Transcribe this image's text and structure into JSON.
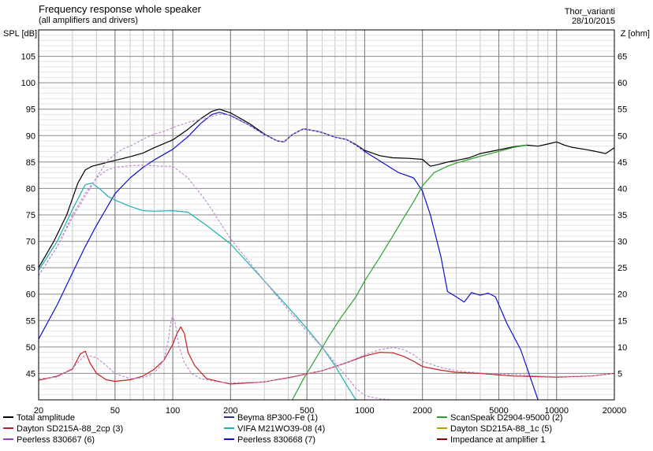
{
  "header": {
    "title": "Frequency response whole speaker",
    "subtitle": "(all amplifiers and drivers)",
    "author": "Thor_varianti",
    "date": "28/10/2015"
  },
  "chart_data": {
    "type": "line",
    "title": "Frequency response whole speaker",
    "subtitle": "(all amplifiers and drivers)",
    "xlabel": "",
    "ylabel": "SPL [dB]",
    "y2label": "Z [ohm]",
    "x_scale": "log",
    "xlim": [
      20,
      20000
    ],
    "ylim": [
      40,
      110
    ],
    "y2lim": [
      0,
      70
    ],
    "grid": true,
    "x_ticks": [
      20,
      50,
      100,
      200,
      500,
      1000,
      2000,
      5000,
      10000,
      20000
    ],
    "x_tick_labels": [
      "20",
      "50",
      "100",
      "200",
      "500",
      "1000",
      "2000",
      "5000",
      "10000",
      "20000"
    ],
    "y_ticks": [
      45,
      50,
      55,
      60,
      65,
      70,
      75,
      80,
      85,
      90,
      95,
      100,
      105
    ],
    "y_tick_labels": [
      "45",
      "50",
      "55",
      "60",
      "65",
      "70",
      "75",
      "80",
      "85",
      "90",
      "95",
      "100",
      "105"
    ],
    "y2_ticks": [
      5,
      10,
      15,
      20,
      25,
      30,
      35,
      40,
      45,
      50,
      55,
      60,
      65
    ],
    "y2_tick_labels": [
      "5",
      "10",
      "15",
      "20",
      "25",
      "30",
      "35",
      "40",
      "45",
      "50",
      "55",
      "60",
      "65"
    ],
    "legend_position": "bottom",
    "legend": [
      {
        "label": "Total amplitude",
        "color": "#000000"
      },
      {
        "label": "Beyma 8P300-Fe (1)",
        "color": "#303090"
      },
      {
        "label": "ScanSpeak D2904-95000 (2)",
        "color": "#30a030"
      },
      {
        "label": "Dayton SD215A-88_2cp (3)",
        "color": "#c02020"
      },
      {
        "label": "VIFA M21WO39-08 (4)",
        "color": "#20b0b0"
      },
      {
        "label": "Dayton SD215A-88_1c (5)",
        "color": "#b0a000"
      },
      {
        "label": "Peerless 830667 (6)",
        "color": "#9040c0"
      },
      {
        "label": "Peerless 830668 (7)",
        "color": "#1010d0"
      },
      {
        "label": "Impedance at amplifier 1",
        "color": "#800000"
      }
    ],
    "series": [
      {
        "name": "Total amplitude",
        "color": "#000000",
        "style": "solid",
        "x": [
          20,
          24,
          28,
          32,
          35,
          38,
          42,
          46,
          50,
          60,
          70,
          80,
          90,
          100,
          120,
          140,
          160,
          175,
          200,
          250,
          300,
          350,
          380,
          420,
          480,
          550,
          600,
          700,
          800,
          900,
          1000,
          1200,
          1400,
          1700,
          2000,
          2200,
          2400,
          2700,
          3000,
          3500,
          4000,
          5000,
          6000,
          7000,
          8000,
          9000,
          10000,
          11000,
          12000,
          14000,
          16000,
          18000,
          20000
        ],
        "y": [
          65,
          70,
          75,
          81,
          83.5,
          84.2,
          84.6,
          85,
          85.3,
          86,
          86.7,
          87.7,
          88.5,
          89.2,
          91.2,
          93.2,
          94.6,
          95,
          94.3,
          92.3,
          90.3,
          89,
          88.8,
          90.2,
          91.3,
          90.9,
          90.6,
          89.7,
          89.3,
          88.3,
          87.2,
          86.2,
          85.8,
          85.7,
          85.5,
          84.2,
          84.5,
          85,
          85.3,
          85.8,
          86.6,
          87.3,
          87.9,
          88.2,
          88,
          88.4,
          88.8,
          88.2,
          87.8,
          87.4,
          87,
          86.6,
          87.7
        ]
      },
      {
        "name": "Peerless 830668 (7)",
        "color": "#1010d0",
        "style": "solid",
        "x": [
          20,
          25,
          30,
          35,
          40,
          50,
          60,
          70,
          80,
          100,
          120,
          140,
          160,
          175,
          200,
          250,
          300,
          350,
          380,
          420,
          480,
          550,
          600,
          700,
          800,
          900,
          1000,
          1200,
          1500,
          1800,
          2000,
          2200,
          2500,
          2700,
          3000,
          3300,
          3600,
          4000,
          4400,
          4800,
          5500,
          6500,
          7500,
          8000
        ],
        "y": [
          51.5,
          58,
          64,
          69,
          73,
          79,
          82,
          84,
          85.4,
          87.4,
          89.8,
          92.3,
          94,
          94.4,
          93.8,
          92,
          90.2,
          89,
          88.8,
          90.2,
          91.3,
          90.9,
          90.6,
          89.7,
          89.3,
          88.2,
          87,
          85.2,
          83,
          82,
          79.5,
          75,
          67,
          60.5,
          59.5,
          58.5,
          60.3,
          59.8,
          60.2,
          59.5,
          54.5,
          49.5,
          43,
          40
        ]
      },
      {
        "name": "ScanSpeak D2904-95000 (2)",
        "color": "#30a030",
        "style": "solid",
        "x": [
          420,
          480,
          550,
          650,
          750,
          900,
          1000,
          1200,
          1400,
          1600,
          1800,
          2000,
          2300,
          2700,
          3000,
          3500,
          4000,
          5000,
          6000,
          7000
        ],
        "y": [
          40,
          44,
          47.5,
          52,
          55.5,
          59.5,
          62.5,
          67,
          71,
          74.5,
          77.5,
          80.5,
          83,
          84.2,
          84.8,
          85.5,
          86.1,
          87,
          87.8,
          88.2
        ]
      },
      {
        "name": "VIFA M21WO39-08 (4)",
        "color": "#20b0b0",
        "style": "solid",
        "x": [
          20,
          25,
          30,
          35,
          38,
          42,
          46,
          50,
          60,
          70,
          80,
          100,
          120,
          150,
          200,
          300,
          400,
          500,
          600,
          700,
          800,
          900
        ],
        "y": [
          64.5,
          70,
          76,
          80.7,
          81,
          79.8,
          78.5,
          77.8,
          76.6,
          75.8,
          75.7,
          75.8,
          75.5,
          73,
          69.5,
          62.5,
          57.5,
          53.5,
          50,
          46.5,
          43,
          40
        ]
      },
      {
        "name": "Dayton SD215A-88_2cp (3)",
        "color": "#c02020",
        "style": "solid",
        "x": [
          20,
          25,
          30,
          33,
          35,
          37,
          40,
          45,
          50,
          60,
          70,
          80,
          90,
          100,
          105,
          110,
          115,
          120,
          130,
          150,
          200,
          300,
          400,
          600,
          800,
          1000,
          1200,
          1400,
          1600,
          1800,
          2000,
          2500,
          3000,
          4000,
          5000,
          6000,
          8000,
          10000,
          15000,
          20000
        ],
        "y": [
          43.7,
          44.5,
          45.8,
          48.7,
          49.2,
          47,
          45,
          43.8,
          43.5,
          43.8,
          44.5,
          45.8,
          47.5,
          50.5,
          52.5,
          53.8,
          52.5,
          49,
          46.5,
          44,
          43,
          43.4,
          44.2,
          45.5,
          47,
          48.3,
          49,
          48.9,
          48.2,
          47.3,
          46.3,
          45.6,
          45.2,
          45,
          44.7,
          44.5,
          44.4,
          44.3,
          44.5,
          45
        ]
      },
      {
        "name": "Peerless 830667 (6)",
        "color": "#c090d0",
        "style": "dashed",
        "x": [
          20,
          25,
          30,
          35,
          40,
          45,
          50,
          60,
          70,
          80,
          90,
          100,
          120,
          150,
          200,
          300,
          400,
          500,
          600,
          700,
          800,
          900,
          1000,
          1200,
          1400,
          1700,
          2000
        ],
        "y": [
          63.5,
          69,
          75,
          79,
          82,
          83.4,
          84,
          84.3,
          84.4,
          84.3,
          84.2,
          84.2,
          82,
          77.5,
          70.5,
          62.5,
          57,
          53,
          50,
          47,
          44.5,
          42.2,
          40.8,
          40.2,
          40,
          40,
          40
        ]
      },
      {
        "name": "Peerless 830667 (6) total",
        "color": "#c090d0",
        "style": "dashed",
        "x": [
          20,
          25,
          30,
          35,
          40,
          45,
          50,
          55,
          60,
          70,
          80,
          90,
          100,
          120,
          150,
          175,
          200,
          250,
          300,
          350,
          380,
          420,
          480,
          550,
          600,
          700,
          800,
          900,
          1000
        ],
        "y": [
          63.5,
          69,
          74.5,
          78.5,
          82,
          85,
          86.5,
          87.5,
          88,
          89.3,
          90.3,
          90.8,
          91.5,
          92.5,
          93.4,
          94,
          93.9,
          92,
          90.2,
          89,
          88.8,
          90.2,
          91.3,
          90.9,
          90.6,
          89.7,
          89.3,
          88.2,
          87
        ]
      },
      {
        "name": "Peerless 830667 (6) impedance",
        "color": "#c090d0",
        "style": "dashed",
        "x": [
          20,
          25,
          30,
          35,
          40,
          45,
          50,
          60,
          70,
          80,
          90,
          95,
          98,
          100,
          103,
          108,
          115,
          125,
          140,
          170,
          200,
          300,
          400,
          600,
          800,
          1000,
          1200,
          1400,
          1600,
          1800,
          2000,
          2500,
          3000,
          4000,
          5000,
          6000,
          8000,
          10000,
          15000,
          20000
        ],
        "y": [
          44,
          44.3,
          46,
          48.5,
          48,
          46.5,
          45,
          44,
          44.2,
          45,
          47.5,
          51.5,
          55,
          56,
          54.5,
          50,
          47,
          45,
          44,
          43.4,
          43.2,
          43.4,
          44.1,
          45.5,
          47,
          48.5,
          49.5,
          49.9,
          49.5,
          48.5,
          47.3,
          46.1,
          45.5,
          45.1,
          44.9,
          44.8,
          44.5,
          44.4,
          44.5,
          45
        ]
      }
    ]
  }
}
